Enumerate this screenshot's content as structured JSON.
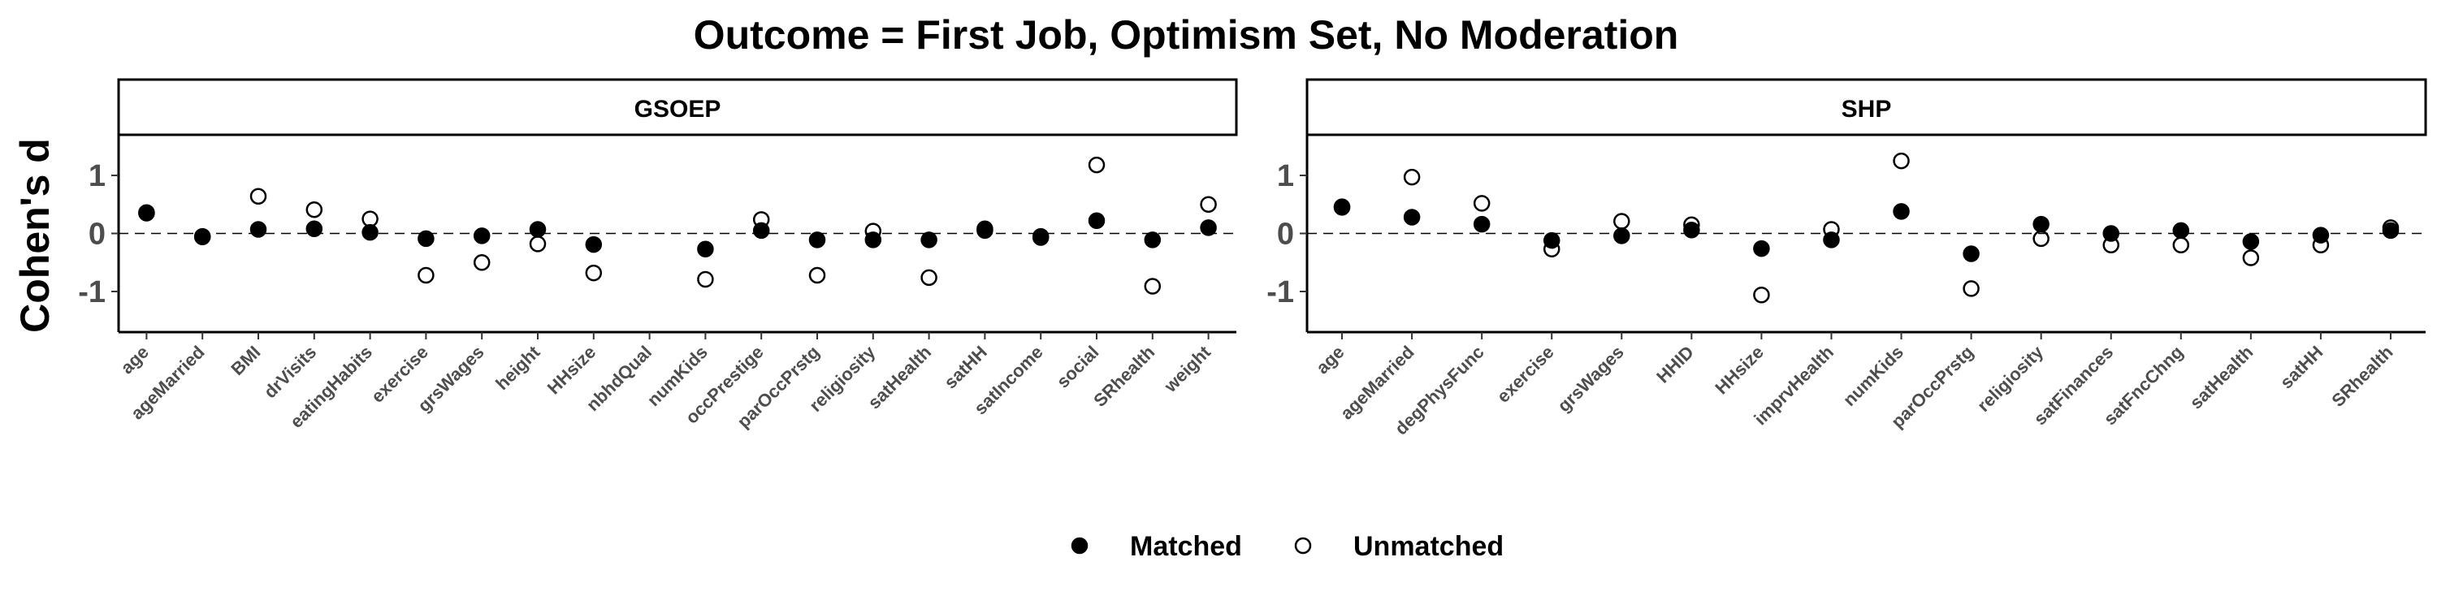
{
  "chart_data": {
    "type": "scatter",
    "title": "Outcome = First Job, Optimism Set, No Moderation",
    "ylabel": "Cohen's d",
    "ylim": [
      -1.7,
      1.7
    ],
    "yticks": [
      -1,
      0,
      1
    ],
    "reference_line": 0,
    "legend": {
      "position": "bottom",
      "entries": [
        {
          "name": "Matched",
          "marker": "filled-circle"
        },
        {
          "name": "Unmatched",
          "marker": "open-circle"
        }
      ]
    },
    "colors": {
      "matched_fill": "#000000",
      "unmatched_fill": "#ffffff",
      "stroke": "#000000"
    },
    "panels": [
      {
        "strip": "GSOEP",
        "categories": [
          "age",
          "ageMarried",
          "BMI",
          "drVisits",
          "eatingHabits",
          "exercise",
          "grsWages",
          "height",
          "HHsize",
          "nbhdQual",
          "numKids",
          "occPrestige",
          "parOccPrstg",
          "religiosity",
          "satHealth",
          "satHH",
          "satIncome",
          "social",
          "SRhealth",
          "weight"
        ],
        "series": [
          {
            "name": "Matched",
            "values": [
              0.36,
              -0.06,
              0.07,
              0.08,
              0.02,
              -0.09,
              -0.04,
              0.07,
              -0.19,
              null,
              -0.27,
              0.05,
              -0.11,
              -0.11,
              -0.11,
              0.05,
              -0.07,
              0.22,
              -0.11,
              0.1
            ]
          },
          {
            "name": "Unmatched",
            "values": [
              0.35,
              -0.05,
              0.64,
              0.41,
              0.25,
              -0.72,
              -0.5,
              -0.18,
              -0.68,
              null,
              -0.79,
              0.24,
              -0.72,
              0.04,
              -0.76,
              0.08,
              -0.05,
              1.18,
              -0.91,
              0.5
            ]
          }
        ]
      },
      {
        "strip": "SHP",
        "categories": [
          "age",
          "ageMarried",
          "degPhysFunc",
          "exercise",
          "grsWages",
          "HHID",
          "HHsize",
          "imprvHealth",
          "numKids",
          "parOccPrstg",
          "religiosity",
          "satFinances",
          "satFncChng",
          "satHealth",
          "satHH",
          "SRhealth"
        ],
        "series": [
          {
            "name": "Matched",
            "values": [
              0.45,
              0.28,
              0.16,
              -0.12,
              -0.04,
              0.06,
              -0.26,
              -0.11,
              0.38,
              -0.35,
              0.16,
              0.0,
              0.05,
              -0.14,
              -0.03,
              0.05
            ]
          },
          {
            "name": "Unmatched",
            "values": [
              0.46,
              0.97,
              0.52,
              -0.27,
              0.21,
              0.15,
              -1.06,
              0.07,
              1.25,
              -0.95,
              -0.09,
              -0.2,
              -0.2,
              -0.42,
              -0.2,
              0.1
            ]
          }
        ]
      }
    ]
  }
}
